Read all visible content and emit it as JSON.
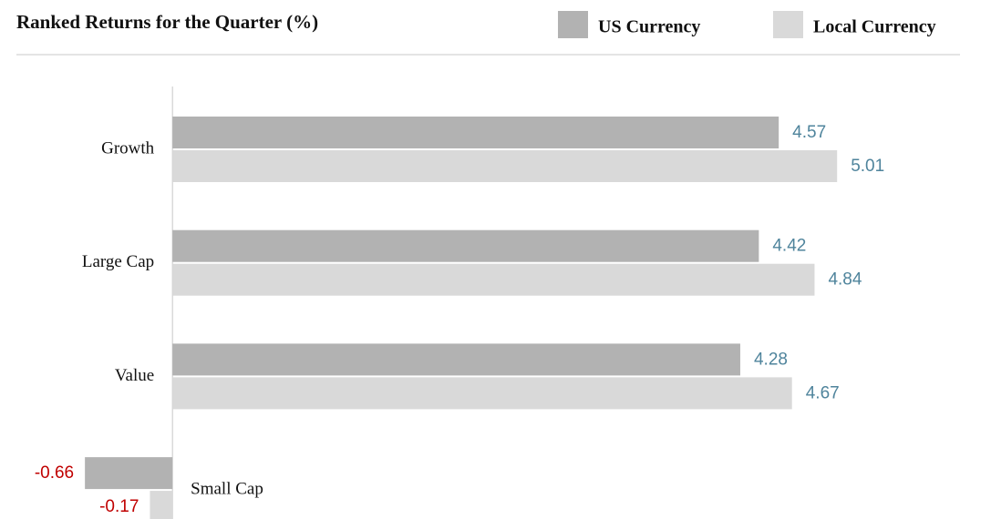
{
  "chart_data": {
    "type": "hbar",
    "title": "Ranked Returns for the Quarter (%)",
    "categories": [
      "Growth",
      "Large Cap",
      "Value",
      "Small Cap"
    ],
    "series": [
      {
        "name": "US Currency",
        "color": "#b2b2b2",
        "values": [
          4.57,
          4.42,
          4.28,
          -0.66
        ]
      },
      {
        "name": "Local Currency",
        "color": "#d9d9d9",
        "values": [
          5.01,
          4.84,
          4.67,
          -0.17
        ]
      }
    ],
    "xlim": [
      -1.3,
      6.17
    ],
    "positive_label_color": "#4f849c",
    "negative_label_color": "#c00000"
  }
}
